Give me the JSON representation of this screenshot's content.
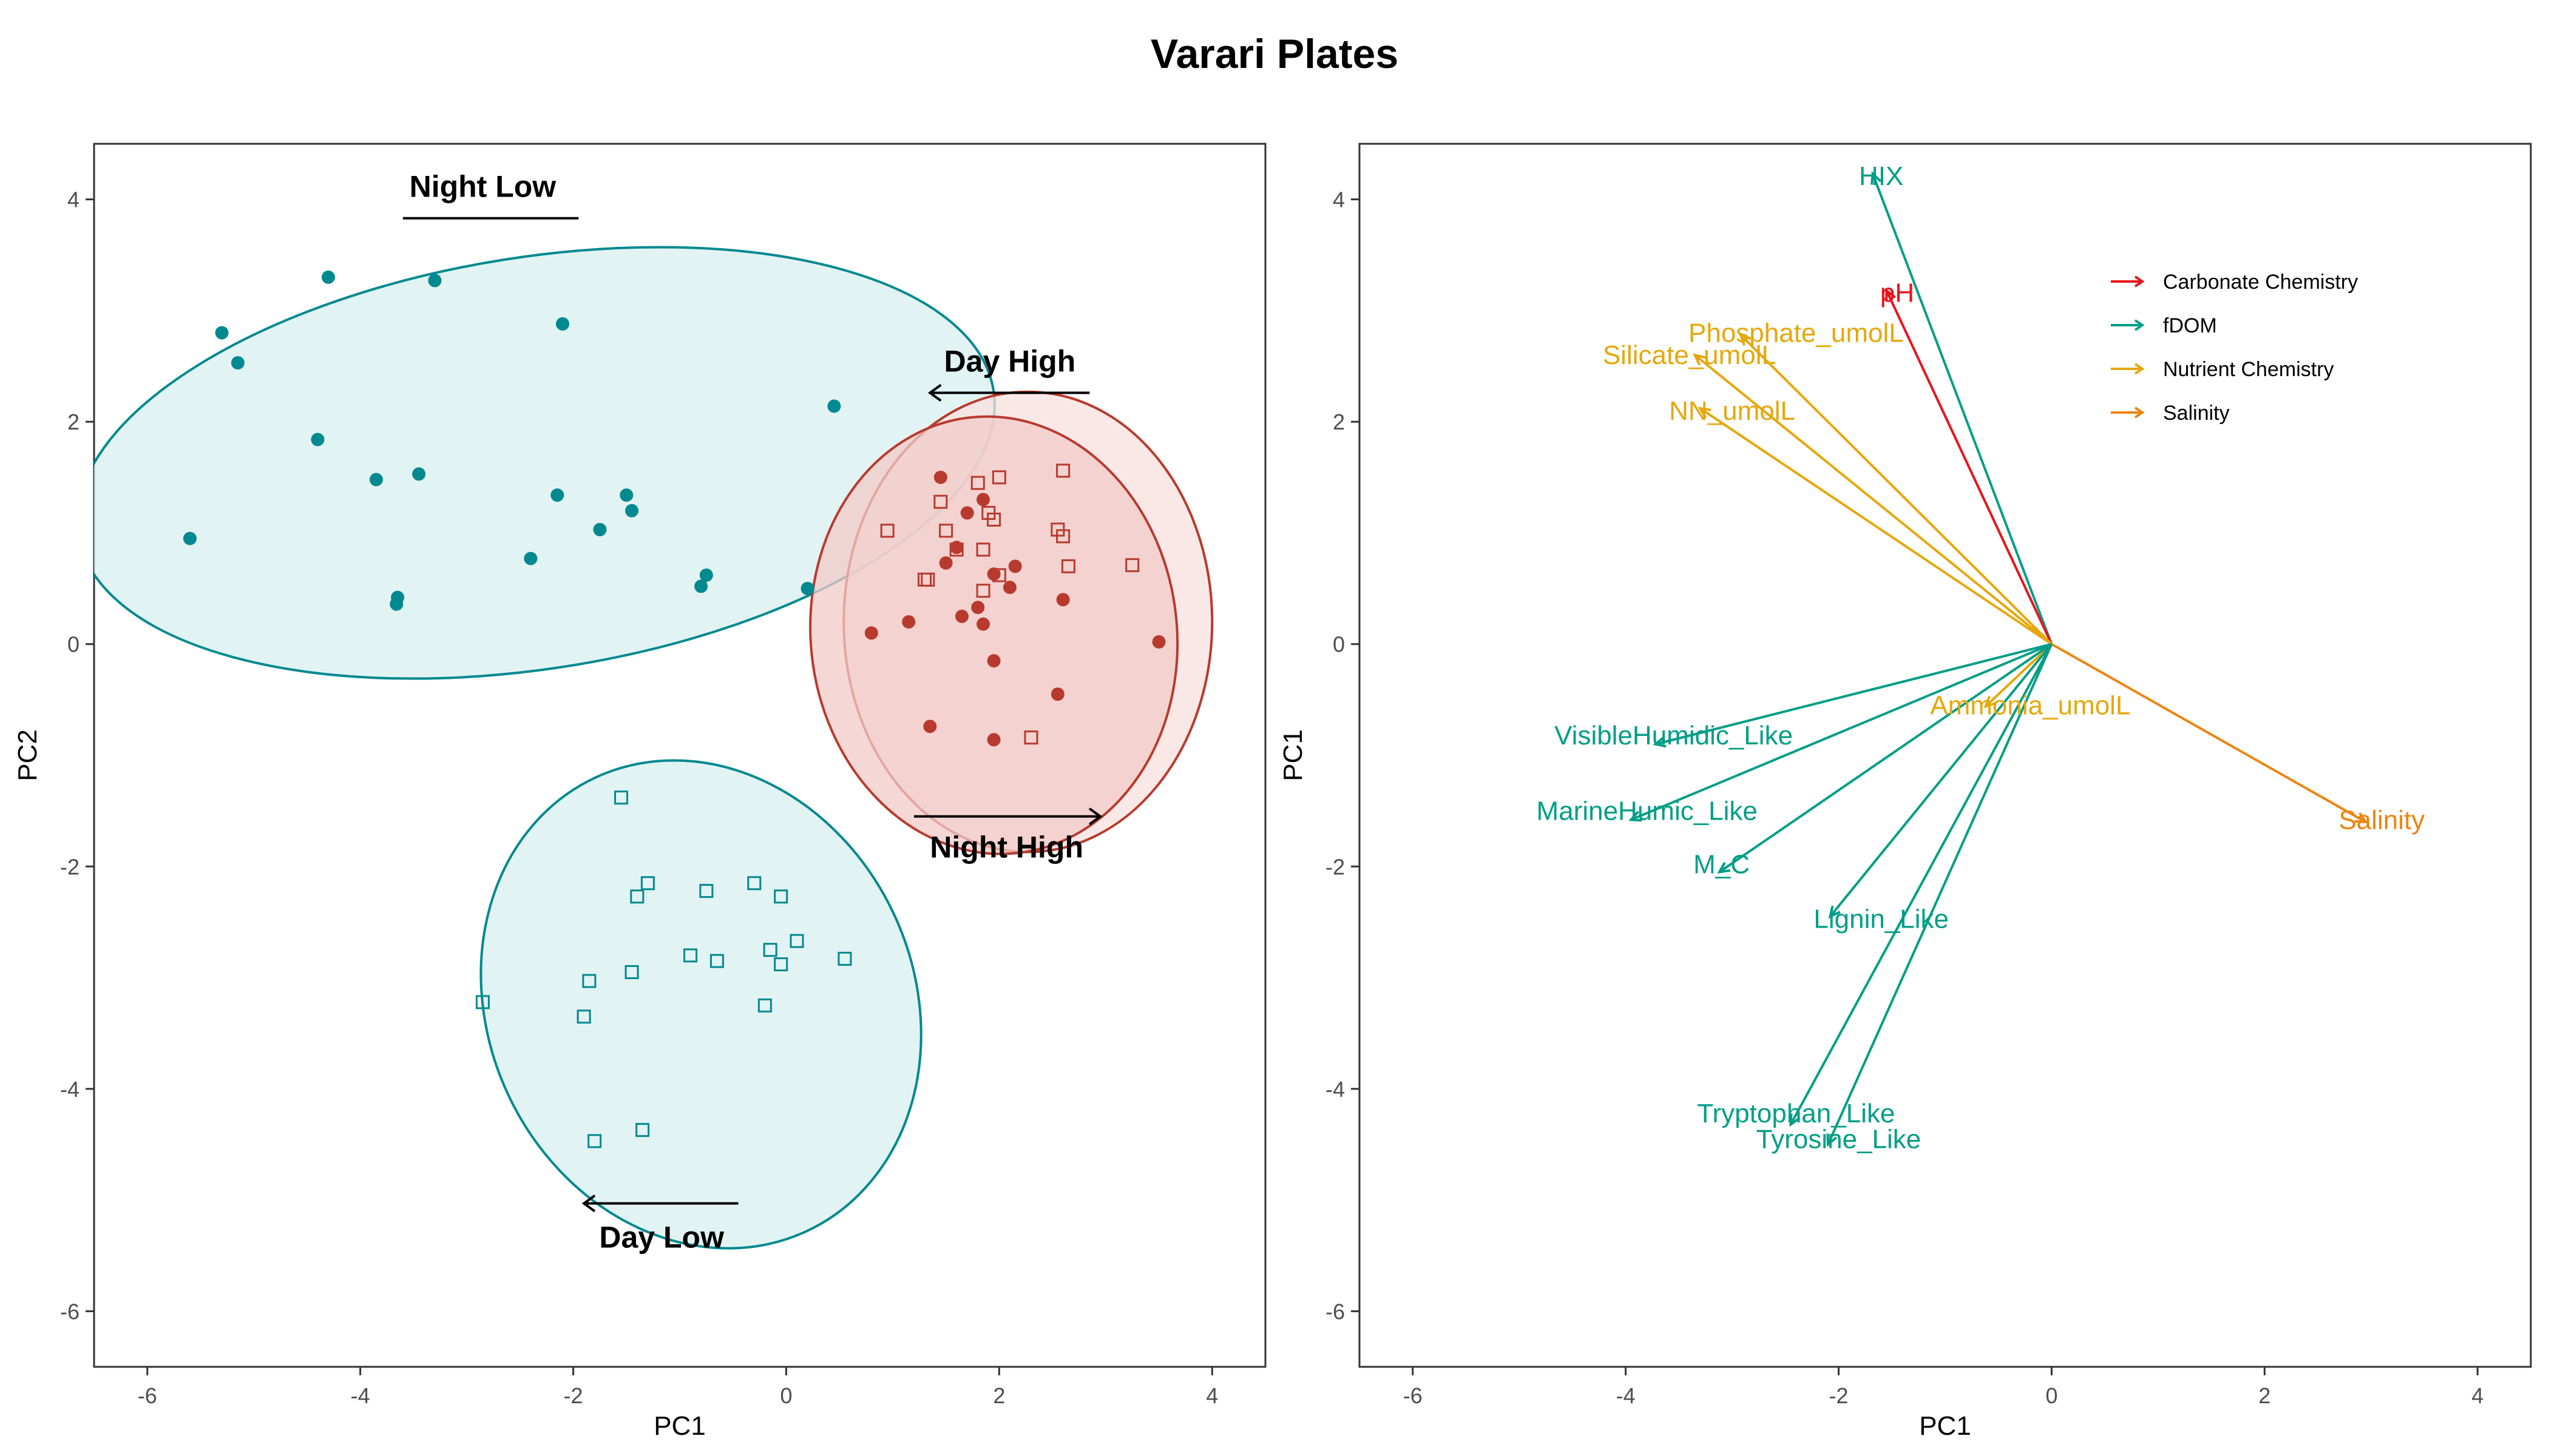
{
  "title": "Varari Plates",
  "colors": {
    "teal": "#00898F",
    "teal_fill": "#D8EFEF",
    "red": "#B83A2E",
    "red_fill": "#F1CBC8",
    "red_fill_light": "#F8E0DE",
    "carbonate": "#E8141B",
    "fdom": "#009E86",
    "nutrient": "#E6A70C",
    "salinity": "#EE8410"
  },
  "chart_data": [
    {
      "type": "scatter",
      "xlabel": "PC1",
      "ylabel": "PC2",
      "xlim": [
        -6.5,
        4.5
      ],
      "ylim": [
        -6.5,
        4.5
      ],
      "xticks": [
        -6,
        -4,
        -2,
        0,
        2,
        4
      ],
      "yticks": [
        -6,
        -4,
        -2,
        0,
        2,
        4
      ],
      "grid": false,
      "groups": [
        {
          "label": "Night Low",
          "marker": "circle",
          "color": "teal",
          "points": [
            [
              -5.3,
              2.8
            ],
            [
              -5.15,
              2.53
            ],
            [
              -4.3,
              3.3
            ],
            [
              -3.3,
              3.27
            ],
            [
              -2.1,
              2.88
            ],
            [
              -4.4,
              1.84
            ],
            [
              -3.85,
              1.48
            ],
            [
              -3.45,
              1.53
            ],
            [
              -2.15,
              1.34
            ],
            [
              -1.5,
              1.34
            ],
            [
              -1.45,
              1.2
            ],
            [
              -1.75,
              1.03
            ],
            [
              -5.6,
              0.95
            ],
            [
              -2.4,
              0.77
            ],
            [
              -3.65,
              0.42
            ],
            [
              -3.66,
              0.36
            ],
            [
              -0.75,
              0.62
            ],
            [
              -0.8,
              0.52
            ],
            [
              0.2,
              0.5
            ],
            [
              0.45,
              2.14
            ]
          ],
          "ellipse": {
            "cx": -2.35,
            "cy": 1.63,
            "rx": 4.35,
            "ry": 1.85,
            "angle": -9
          }
        },
        {
          "label": "Night High",
          "marker": "circle",
          "color": "red",
          "points": [
            [
              1.45,
              1.5
            ],
            [
              1.85,
              1.3
            ],
            [
              1.7,
              1.18
            ],
            [
              1.6,
              0.87
            ],
            [
              2.15,
              0.7
            ],
            [
              1.5,
              0.73
            ],
            [
              1.95,
              0.63
            ],
            [
              2.1,
              0.51
            ],
            [
              2.6,
              0.4
            ],
            [
              1.8,
              0.33
            ],
            [
              1.65,
              0.25
            ],
            [
              1.85,
              0.18
            ],
            [
              1.15,
              0.2
            ],
            [
              0.8,
              0.1
            ],
            [
              3.5,
              0.02
            ],
            [
              1.95,
              -0.15
            ],
            [
              2.55,
              -0.45
            ],
            [
              1.35,
              -0.74
            ],
            [
              1.95,
              -0.86
            ]
          ],
          "ellipse": {
            "cx": 2.27,
            "cy": 0.2,
            "rx": 1.73,
            "ry": 2.07,
            "angle": 0
          }
        },
        {
          "label": "Day High",
          "marker": "square",
          "color": "red",
          "points": [
            [
              2.6,
              1.56
            ],
            [
              1.8,
              1.45
            ],
            [
              2.0,
              1.5
            ],
            [
              1.45,
              1.28
            ],
            [
              1.9,
              1.18
            ],
            [
              1.95,
              1.12
            ],
            [
              0.95,
              1.02
            ],
            [
              1.5,
              1.02
            ],
            [
              2.55,
              1.03
            ],
            [
              2.6,
              0.97
            ],
            [
              1.6,
              0.85
            ],
            [
              1.85,
              0.85
            ],
            [
              2.65,
              0.7
            ],
            [
              3.25,
              0.71
            ],
            [
              1.3,
              0.58
            ],
            [
              1.33,
              0.58
            ],
            [
              2.0,
              0.62
            ],
            [
              1.85,
              0.48
            ],
            [
              2.3,
              -0.84
            ]
          ],
          "ellipse": {
            "cx": 1.95,
            "cy": 0.08,
            "rx": 1.72,
            "ry": 1.97,
            "angle": -6
          }
        },
        {
          "label": "Day Low",
          "marker": "square",
          "color": "teal",
          "points": [
            [
              -1.55,
              -1.38
            ],
            [
              -1.3,
              -2.15
            ],
            [
              -1.4,
              -2.27
            ],
            [
              -0.3,
              -2.15
            ],
            [
              -0.75,
              -2.22
            ],
            [
              -0.05,
              -2.27
            ],
            [
              0.1,
              -2.67
            ],
            [
              -0.15,
              -2.75
            ],
            [
              -0.9,
              -2.8
            ],
            [
              -0.05,
              -2.88
            ],
            [
              0.55,
              -2.83
            ],
            [
              -0.65,
              -2.85
            ],
            [
              -1.45,
              -2.95
            ],
            [
              -1.85,
              -3.03
            ],
            [
              -2.85,
              -3.22
            ],
            [
              -0.2,
              -3.25
            ],
            [
              -1.9,
              -3.35
            ],
            [
              -1.35,
              -4.37
            ],
            [
              -1.8,
              -4.47
            ]
          ],
          "ellipse": {
            "cx": -0.8,
            "cy": -3.24,
            "rx": 2.0,
            "ry": 2.25,
            "angle": -25
          }
        }
      ],
      "annotations": [
        {
          "text": "Night Low",
          "x": -2.85,
          "y": 4.12,
          "line": [
            -3.6,
            -1.95
          ],
          "line_y": 3.83,
          "arrow": "none"
        },
        {
          "text": "Day High",
          "x": 2.1,
          "y": 2.55,
          "line": [
            2.85,
            1.35
          ],
          "line_y": 2.26,
          "arrow": "left"
        },
        {
          "text": "Night High",
          "x": 2.07,
          "y": -1.82,
          "line": [
            1.2,
            2.95
          ],
          "line_y": -1.55,
          "arrow": "right"
        },
        {
          "text": "Day Low",
          "x": -1.17,
          "y": -5.33,
          "line": [
            -0.45,
            -1.9
          ],
          "line_y": -5.03,
          "arrow": "left"
        }
      ]
    },
    {
      "type": "biplot",
      "xlabel": "PC1",
      "ylabel": "PC1",
      "xlim": [
        -6.5,
        4.5
      ],
      "ylim": [
        -6.5,
        4.5
      ],
      "xticks": [
        -6,
        -4,
        -2,
        0,
        2,
        4
      ],
      "yticks": [
        -6,
        -4,
        -2,
        0,
        2,
        4
      ],
      "grid": false,
      "legend_position": "top-right",
      "legend": [
        {
          "label": "Carbonate Chemistry",
          "color": "carbonate"
        },
        {
          "label": "fDOM",
          "color": "fdom"
        },
        {
          "label": "Nutrient Chemistry",
          "color": "nutrient"
        },
        {
          "label": "Salinity",
          "color": "salinity"
        }
      ],
      "vectors": [
        {
          "label": "HIX",
          "group": "fDOM",
          "x": -1.68,
          "y": 4.23,
          "label_x": -1.6,
          "label_y": 4.21
        },
        {
          "label": "pH",
          "group": "Carbonate Chemistry",
          "x": -1.55,
          "y": 3.18,
          "label_x": -1.45,
          "label_y": 3.16
        },
        {
          "label": "Phosphate_umolL",
          "group": "Nutrient Chemistry",
          "x": -2.92,
          "y": 2.78,
          "label_x": -2.4,
          "label_y": 2.8
        },
        {
          "label": "Silicate_umolL",
          "group": "Nutrient Chemistry",
          "x": -3.35,
          "y": 2.6,
          "label_x": -3.4,
          "label_y": 2.6
        },
        {
          "label": "NN_umolL",
          "group": "Nutrient Chemistry",
          "x": -3.3,
          "y": 2.12,
          "label_x": -3.0,
          "label_y": 2.1
        },
        {
          "label": "Ammonia_umolL",
          "group": "Nutrient Chemistry",
          "x": -0.62,
          "y": -0.56,
          "label_x": -0.2,
          "label_y": -0.55
        },
        {
          "label": "Salinity",
          "group": "Salinity",
          "x": 2.95,
          "y": -1.6,
          "label_x": 3.1,
          "label_y": -1.58
        },
        {
          "label": "VisibleHumidic_Like",
          "group": "fDOM",
          "x": -3.72,
          "y": -0.9,
          "label_x": -3.55,
          "label_y": -0.82
        },
        {
          "label": "MarineHumic_Like",
          "group": "fDOM",
          "x": -3.95,
          "y": -1.58,
          "label_x": -3.8,
          "label_y": -1.5
        },
        {
          "label": "M_C",
          "group": "fDOM",
          "x": -3.12,
          "y": -2.05,
          "label_x": -3.1,
          "label_y": -1.98
        },
        {
          "label": "Lignin_Like",
          "group": "fDOM",
          "x": -2.08,
          "y": -2.45,
          "label_x": -1.6,
          "label_y": -2.47
        },
        {
          "label": "Tryptophan_Like",
          "group": "fDOM",
          "x": -2.45,
          "y": -4.32,
          "label_x": -2.4,
          "label_y": -4.22
        },
        {
          "label": "Tyrosine_Like",
          "group": "fDOM",
          "x": -2.1,
          "y": -4.5,
          "label_x": -2.0,
          "label_y": -4.45
        }
      ]
    }
  ]
}
